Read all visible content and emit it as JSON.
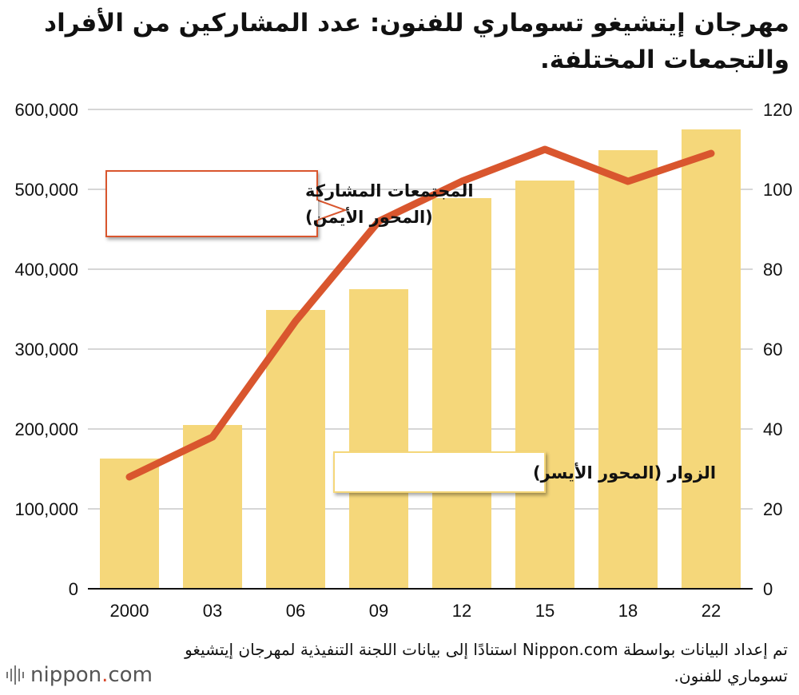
{
  "title": "مهرجان إيتشيغو تسوماري للفنون: عدد المشاركين من الأفراد والتجمعات المختلفة.",
  "source_note": "تم إعداد البيانات بواسطة Nippon.com استنادًا إلى بيانات اللجنة التنفيذية لمهرجان إيتشيغو تسوماري للفنون.",
  "brand": {
    "name": "nippon",
    "dot": ".",
    "suffix": "com",
    "icon": "sound-bars-logo"
  },
  "colors": {
    "bar": "#F5D77A",
    "line": "#D9562E",
    "grid": "#d6d6d6",
    "callout_border": "#D9562E"
  },
  "chart_data": {
    "type": "bar",
    "categories": [
      "2000",
      "03",
      "06",
      "09",
      "12",
      "15",
      "18",
      "22"
    ],
    "series": [
      {
        "name": "الزوار (المحور الأيسر)",
        "type": "bar",
        "axis": "left",
        "values": [
          163000,
          205000,
          349000,
          375000,
          489000,
          511000,
          549000,
          575000
        ]
      },
      {
        "name": "المجتمعات المشاركة (المحور الأيمن)",
        "type": "line",
        "axis": "right",
        "values": [
          28,
          38,
          67,
          92,
          102,
          110,
          102,
          109
        ]
      }
    ],
    "y_left": {
      "ticks": [
        "0",
        "100,000",
        "200,000",
        "300,000",
        "400,000",
        "500,000",
        "600,000"
      ],
      "ylim": [
        0,
        600000
      ]
    },
    "y_right": {
      "ticks": [
        "0",
        "20",
        "40",
        "60",
        "80",
        "100",
        "120"
      ],
      "ylim": [
        0,
        120
      ]
    },
    "grid": true,
    "callouts": {
      "line": [
        "المجتمعات المشاركة",
        "(المحور الأيمن)"
      ],
      "bar": [
        "الزوار (المحور الأيسر)"
      ]
    }
  }
}
